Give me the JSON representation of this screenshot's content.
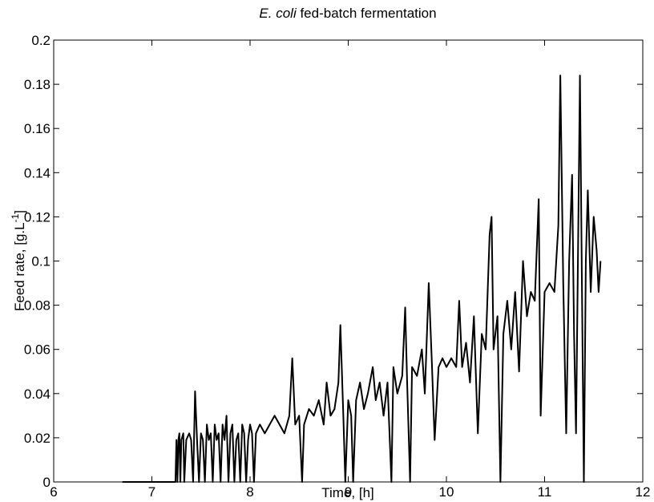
{
  "chart_data": {
    "type": "line",
    "title": {
      "italic": "E. coli",
      "text": "fed-batch fermentation"
    },
    "xlabel": "Time, [h]",
    "ylabel": {
      "text": "Feed rate, [g.L",
      "superscript": "-1",
      "end": "]"
    },
    "xlim": [
      6,
      12
    ],
    "xticks": [
      6,
      7,
      8,
      9,
      10,
      11,
      12
    ],
    "ylim": [
      0,
      0.2
    ],
    "yticks": [
      0,
      0.02,
      0.04,
      0.06,
      0.08,
      0.1,
      0.12,
      0.14,
      0.16,
      0.18,
      0.2
    ],
    "grid": false,
    "series": [
      {
        "color": "#000000",
        "x": [
          6.7,
          7.24,
          7.25,
          7.26,
          7.27,
          7.28,
          7.29,
          7.3,
          7.32,
          7.33,
          7.35,
          7.38,
          7.4,
          7.42,
          7.44,
          7.46,
          7.48,
          7.5,
          7.52,
          7.54,
          7.56,
          7.58,
          7.6,
          7.62,
          7.64,
          7.66,
          7.68,
          7.7,
          7.72,
          7.74,
          7.76,
          7.78,
          7.8,
          7.82,
          7.84,
          7.86,
          7.88,
          7.9,
          7.92,
          7.94,
          7.96,
          7.98,
          8.0,
          8.02,
          8.04,
          8.06,
          8.1,
          8.15,
          8.2,
          8.25,
          8.3,
          8.35,
          8.4,
          8.43,
          8.46,
          8.5,
          8.53,
          8.55,
          8.6,
          8.65,
          8.7,
          8.75,
          8.78,
          8.82,
          8.86,
          8.9,
          8.92,
          8.95,
          8.97,
          9.0,
          9.03,
          9.05,
          9.08,
          9.12,
          9.16,
          9.2,
          9.25,
          9.28,
          9.32,
          9.36,
          9.4,
          9.44,
          9.46,
          9.5,
          9.55,
          9.58,
          9.6,
          9.63,
          9.65,
          9.7,
          9.75,
          9.78,
          9.82,
          9.85,
          9.88,
          9.92,
          9.96,
          10.0,
          10.05,
          10.1,
          10.13,
          10.16,
          10.2,
          10.24,
          10.28,
          10.32,
          10.36,
          10.4,
          10.44,
          10.46,
          10.48,
          10.52,
          10.55,
          10.58,
          10.62,
          10.66,
          10.7,
          10.74,
          10.78,
          10.82,
          10.86,
          10.9,
          10.94,
          10.96,
          11.0,
          11.05,
          11.1,
          11.14,
          11.16,
          11.19,
          11.22,
          11.25,
          11.28,
          11.3,
          11.32,
          11.35,
          11.36,
          11.38,
          11.4,
          11.42,
          11.44,
          11.47,
          11.5,
          11.53,
          11.55,
          11.57
        ],
        "values": [
          0,
          0,
          0.019,
          0,
          0.019,
          0.022,
          0,
          0.019,
          0.022,
          0,
          0.019,
          0.022,
          0.019,
          0,
          0.041,
          0.019,
          0,
          0.022,
          0.019,
          0,
          0.026,
          0.019,
          0.022,
          0,
          0.026,
          0.019,
          0.022,
          0,
          0.026,
          0.019,
          0.03,
          0,
          0.022,
          0.026,
          0,
          0.019,
          0.022,
          0,
          0.026,
          0.022,
          0,
          0.019,
          0.026,
          0.022,
          0,
          0.022,
          0.026,
          0.022,
          0.026,
          0.03,
          0.026,
          0.022,
          0.03,
          0.056,
          0.026,
          0.03,
          0,
          0.026,
          0.033,
          0.03,
          0.037,
          0.026,
          0.045,
          0.03,
          0.033,
          0.045,
          0.071,
          0.03,
          0,
          0.037,
          0.03,
          0,
          0.037,
          0.045,
          0.033,
          0.04,
          0.052,
          0.037,
          0.045,
          0.03,
          0.045,
          0,
          0.052,
          0.04,
          0.048,
          0.079,
          0.045,
          0,
          0.052,
          0.048,
          0.06,
          0.04,
          0.09,
          0.056,
          0.019,
          0.052,
          0.056,
          0.052,
          0.056,
          0.052,
          0.082,
          0.052,
          0.063,
          0.045,
          0.075,
          0.022,
          0.067,
          0.06,
          0.112,
          0.12,
          0.06,
          0.075,
          0,
          0.067,
          0.082,
          0.06,
          0.086,
          0.05,
          0.1,
          0.075,
          0.086,
          0.082,
          0.128,
          0.03,
          0.086,
          0.09,
          0.086,
          0.116,
          0.184,
          0.09,
          0.022,
          0.1,
          0.139,
          0.067,
          0.022,
          0.143,
          0.184,
          0.09,
          0,
          0.1,
          0.132,
          0.086,
          0.12,
          0.105,
          0.086,
          0.1
        ]
      }
    ]
  }
}
